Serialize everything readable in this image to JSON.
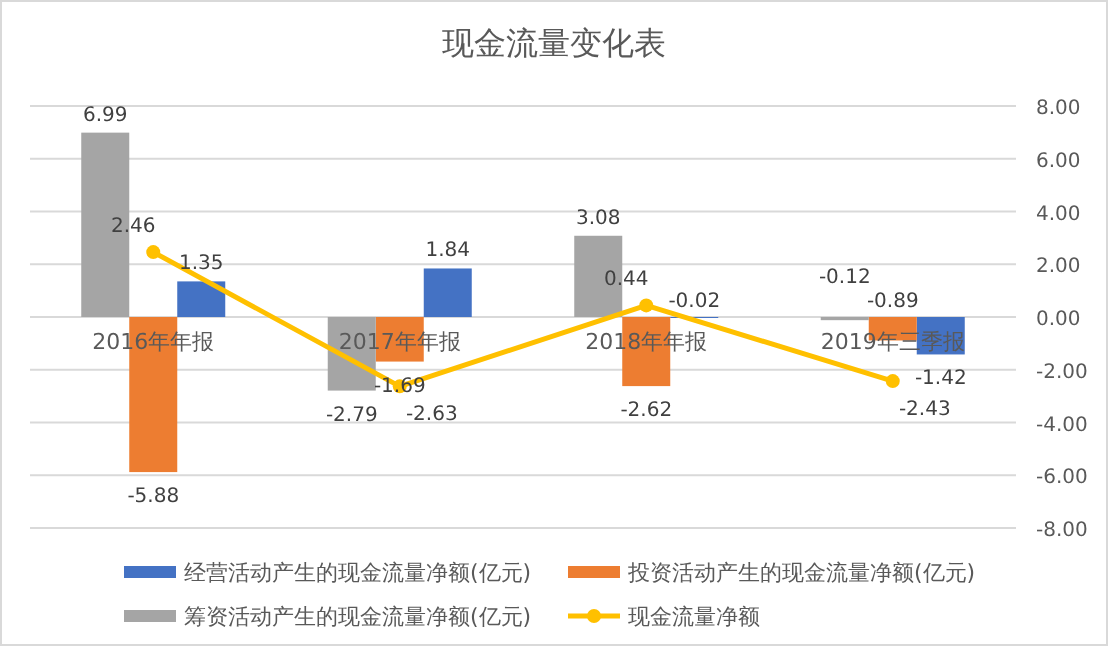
{
  "chart_data": {
    "type": "bar",
    "title": "现金流量变化表",
    "categories": [
      "2016年年报",
      "2017年年报",
      "2018年年报",
      "2019年三季报"
    ],
    "series": [
      {
        "name": "经营活动产生的现金流量净额(亿元)",
        "color": "#4472c4",
        "values": [
          1.35,
          1.84,
          -0.02,
          -1.42
        ]
      },
      {
        "name": "投资活动产生的现金流量净额(亿元)",
        "color": "#ed7d31",
        "values": [
          -5.88,
          -1.69,
          -2.62,
          -0.89
        ]
      },
      {
        "name": "筹资活动产生的现金流量净额(亿元)",
        "color": "#a5a5a5",
        "values": [
          6.99,
          -2.79,
          3.08,
          -0.12
        ]
      },
      {
        "name": "现金流量净额",
        "type": "line",
        "color": "#ffc000",
        "values": [
          2.46,
          -2.63,
          0.44,
          -2.43
        ],
        "marker": "circle"
      }
    ],
    "ylim": [
      -8,
      8
    ],
    "yticks": [
      {
        "value": -8,
        "label": "-8.00"
      },
      {
        "value": -6,
        "label": "-6.00"
      },
      {
        "value": -4,
        "label": "-4.00"
      },
      {
        "value": -2,
        "label": "-2.00"
      },
      {
        "value": 0,
        "label": "0.00"
      },
      {
        "value": 2,
        "label": "2.00"
      },
      {
        "value": 4,
        "label": "4.00"
      },
      {
        "value": 6,
        "label": "6.00"
      },
      {
        "value": 8,
        "label": "8.00"
      }
    ],
    "grid": "y",
    "legend": "bottom",
    "data_labels": true
  }
}
